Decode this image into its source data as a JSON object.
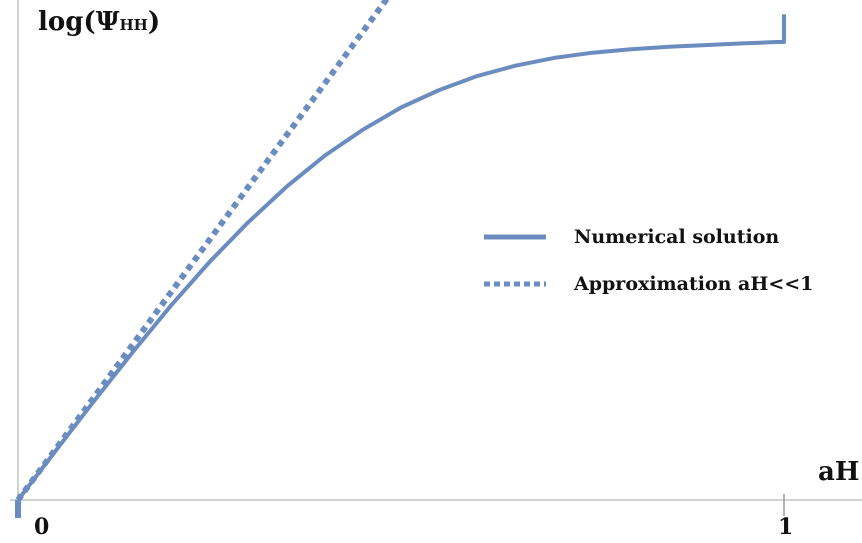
{
  "chart_data": {
    "type": "line",
    "title": "",
    "ylabel": "log(Ψ",
    "ylabel_subscript": "HH",
    "ylabel_close": ")",
    "xlabel": "aH",
    "xlim": [
      0,
      1
    ],
    "x_ticks": [
      {
        "value": 0,
        "label": "0"
      },
      {
        "value": 1,
        "label": "1"
      }
    ],
    "grid": false,
    "legend_position": "right",
    "series": [
      {
        "name": "Numerical solution",
        "style": "solid",
        "color": "#6b8cbe",
        "x": [
          0,
          0.05,
          0.1,
          0.15,
          0.2,
          0.25,
          0.3,
          0.35,
          0.4,
          0.45,
          0.5,
          0.55,
          0.6,
          0.65,
          0.7,
          0.75,
          0.8,
          0.85,
          0.9,
          0.95,
          0.99,
          1.0,
          1.0
        ],
        "y": [
          0,
          0.117,
          0.233,
          0.346,
          0.455,
          0.556,
          0.648,
          0.731,
          0.804,
          0.865,
          0.917,
          0.958,
          0.991,
          1.015,
          1.033,
          1.045,
          1.053,
          1.059,
          1.063,
          1.067,
          1.07,
          1.07,
          1.135
        ]
      },
      {
        "name": "Approximation aH<<1",
        "style": "dotted",
        "color": "#6b8cbe",
        "x": [
          0,
          0.1,
          0.2,
          0.3,
          0.4,
          0.5,
          0.6,
          0.65
        ],
        "y": [
          0,
          0.242,
          0.486,
          0.73,
          0.972,
          1.216,
          1.46,
          1.582
        ]
      }
    ]
  }
}
